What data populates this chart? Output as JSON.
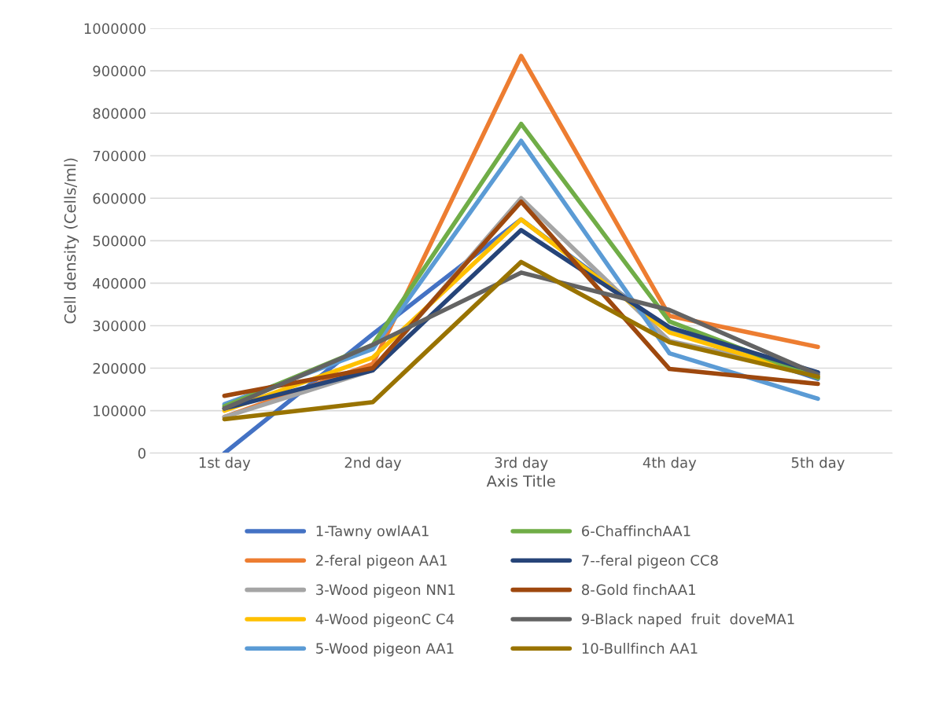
{
  "chart_data": {
    "type": "line",
    "xlabel": "Axis Title",
    "ylabel": "Cell density (Cells/ml)",
    "categories": [
      "1st day",
      "2nd day",
      "3rd day",
      "4th day",
      "5th day"
    ],
    "ylim": [
      0,
      1000000
    ],
    "yticks": [
      0,
      100000,
      200000,
      300000,
      400000,
      500000,
      600000,
      700000,
      800000,
      900000,
      1000000
    ],
    "grid": "y",
    "legend": "bottom",
    "marker": "none",
    "line_style": "solid",
    "series": [
      {
        "name": "1-Tawny owlAA1",
        "color": "#4472c4",
        "values": [
          0,
          280000,
          550000,
          290000,
          175000
        ]
      },
      {
        "name": "2-feral pigeon AA1",
        "color": "#ed7d31",
        "values": [
          85000,
          210000,
          935000,
          323000,
          250000
        ]
      },
      {
        "name": "3-Wood pigeon NN1",
        "color": "#a5a5a5",
        "values": [
          85000,
          195000,
          600000,
          264000,
          190000
        ]
      },
      {
        "name": "4-Wood pigeonC C4",
        "color": "#ffc000",
        "values": [
          100000,
          225000,
          550000,
          284000,
          180000
        ]
      },
      {
        "name": "5-Wood pigeon AA1",
        "color": "#5b9bd5",
        "values": [
          115000,
          245000,
          735000,
          235000,
          128000
        ]
      },
      {
        "name": "6-ChaffinchAA1",
        "color": "#70ad47",
        "values": [
          110000,
          255000,
          775000,
          310000,
          177000
        ]
      },
      {
        "name": "7--feral pigeon CC8",
        "color": "#264478",
        "values": [
          105000,
          195000,
          525000,
          296000,
          190000
        ]
      },
      {
        "name": "8-Gold finchAA1",
        "color": "#9e480e",
        "values": [
          135000,
          200000,
          592000,
          198000,
          163000
        ]
      },
      {
        "name": "9-Black naped  fruit  doveMA1",
        "color": "#636363",
        "values": [
          105000,
          255000,
          425000,
          337000,
          185000
        ]
      },
      {
        "name": "10-Bullfinch AA1",
        "color": "#997300",
        "values": [
          80000,
          120000,
          450000,
          261000,
          180000
        ]
      }
    ]
  }
}
